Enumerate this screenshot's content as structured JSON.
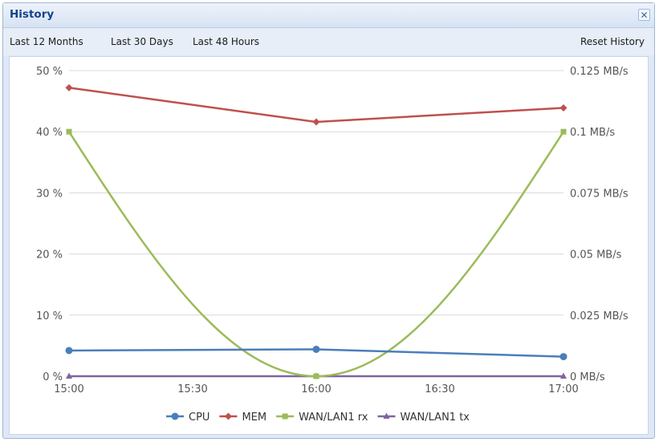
{
  "window": {
    "title": "History",
    "close_icon": "close-icon"
  },
  "toolbar": {
    "last_12_months": "Last 12 Months",
    "last_30_days": "Last 30 Days",
    "last_48_hours": "Last 48 Hours",
    "reset_history": "Reset History"
  },
  "chart_data": {
    "type": "line",
    "x": [
      "15:00",
      "16:00",
      "17:00"
    ],
    "x_ticks": [
      "15:00",
      "15:30",
      "16:00",
      "16:30",
      "17:00"
    ],
    "left_axis": {
      "ylim": [
        0,
        50
      ],
      "ticks": [
        "0 %",
        "10 %",
        "20 %",
        "30 %",
        "40 %",
        "50 %"
      ]
    },
    "right_axis": {
      "ylim": [
        0,
        0.125
      ],
      "ticks": [
        "0 MB/s",
        "0.025 MB/s",
        "0.05 MB/s",
        "0.075 MB/s",
        "0.1 MB/s",
        "0.125 MB/s"
      ]
    },
    "grid": true,
    "legend_position": "bottom",
    "series": [
      {
        "name": "CPU",
        "axis": "left",
        "values": [
          4.2,
          4.4,
          3.2
        ],
        "color": "#4a7ebb",
        "marker": "circle"
      },
      {
        "name": "MEM",
        "axis": "left",
        "values": [
          47.2,
          41.6,
          43.9
        ],
        "color": "#c0504d",
        "marker": "diamond"
      },
      {
        "name": "WAN/LAN1 rx",
        "axis": "right",
        "values": [
          0.1,
          0,
          0.1
        ],
        "color": "#9bbb59",
        "marker": "square",
        "curve": "smooth"
      },
      {
        "name": "WAN/LAN1 tx",
        "axis": "right",
        "values": [
          0,
          0,
          0
        ],
        "color": "#8064a2",
        "marker": "triangle"
      }
    ]
  }
}
